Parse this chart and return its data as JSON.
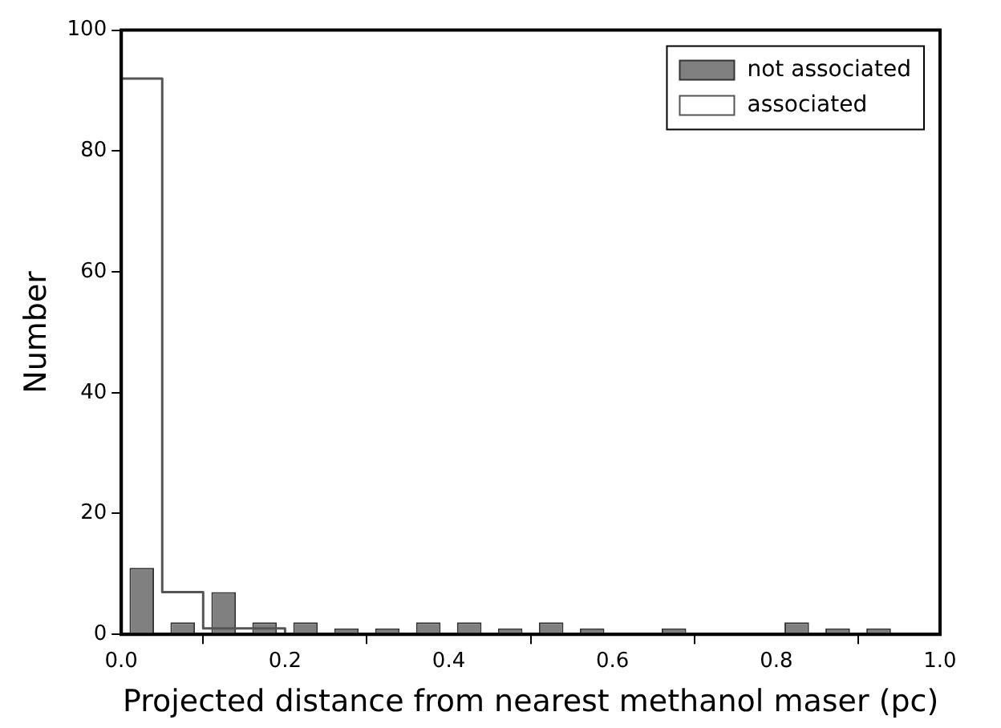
{
  "chart_data": {
    "type": "histogram",
    "xlabel": "Projected distance from nearest methanol maser (pc)",
    "ylabel": "Number",
    "bins": [
      0,
      0.05,
      0.1,
      0.15,
      0.2,
      0.25,
      0.3,
      0.35,
      0.4,
      0.45,
      0.5,
      0.55,
      0.6,
      0.65,
      0.7,
      0.75,
      0.8,
      0.85,
      0.9,
      0.95
    ],
    "series": [
      {
        "name": "not associated",
        "color": "#808080",
        "values": [
          11,
          2,
          7,
          2,
          2,
          1,
          1,
          2,
          2,
          1,
          2,
          1,
          0,
          1,
          0,
          0,
          2,
          1,
          1
        ]
      },
      {
        "name": "associated",
        "type": "step",
        "color": "#555555",
        "x": [
          0,
          0.05,
          0.1,
          0.15,
          0.2,
          0.25,
          0.3,
          0.35,
          0.4,
          0.45,
          0.5,
          0.55,
          0.6,
          0.65,
          0.7,
          0.75,
          0.8,
          0.85,
          0.9
        ],
        "values": [
          92,
          7,
          1,
          1,
          0,
          0,
          0,
          0,
          0,
          0,
          0,
          0,
          0,
          0,
          0,
          0,
          0,
          0,
          0
        ]
      }
    ],
    "xlim": [
      0,
      1
    ],
    "xticks": [
      {
        "value": 0,
        "label": "0.0"
      },
      {
        "value": 0.2,
        "label": "0.2"
      },
      {
        "value": 0.4,
        "label": "0.4"
      },
      {
        "value": 0.6,
        "label": "0.6"
      },
      {
        "value": 0.8,
        "label": "0.8"
      },
      {
        "value": 1,
        "label": "1.0"
      }
    ],
    "ylim": [
      0,
      100
    ],
    "yticks": [
      0,
      20,
      40,
      60,
      80,
      100
    ],
    "grid": false,
    "legend": "top right"
  }
}
